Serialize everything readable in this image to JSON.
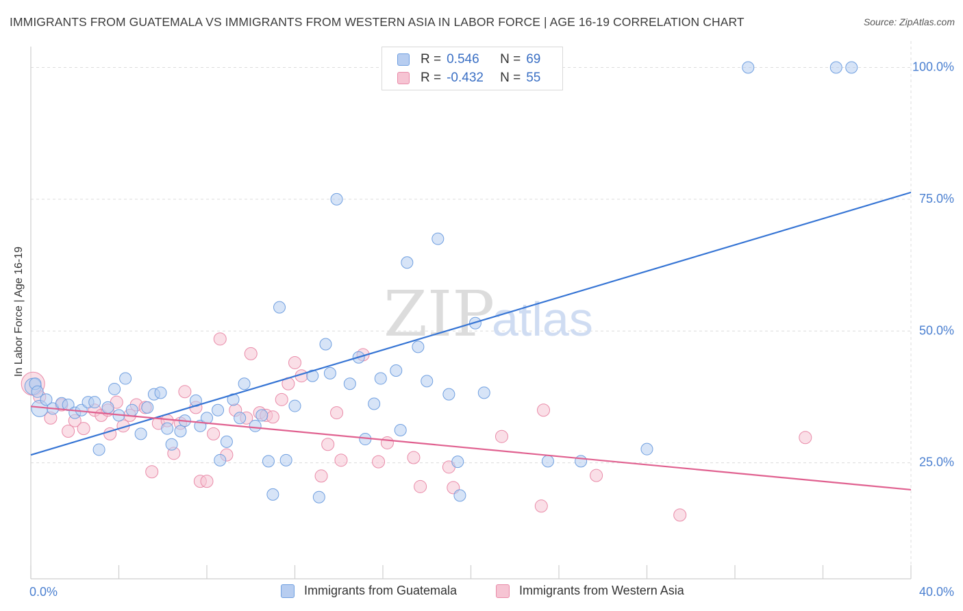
{
  "header": {
    "title": "IMMIGRANTS FROM GUATEMALA VS IMMIGRANTS FROM WESTERN ASIA IN LABOR FORCE | AGE 16-19 CORRELATION CHART",
    "source": "Source: ZipAtlas.com"
  },
  "watermark": {
    "zip": "ZIP",
    "atlas": "atlas"
  },
  "legend": {
    "rows": [
      {
        "r_label": "R =",
        "r_value": "0.546",
        "n_label": "N =",
        "n_value": "69"
      },
      {
        "r_label": "R =",
        "r_value": "-0.432",
        "n_label": "N =",
        "n_value": "55"
      }
    ]
  },
  "bottom_legend": {
    "guatemala": "Immigrants from Guatemala",
    "western_asia": "Immigrants from Western Asia"
  },
  "colors": {
    "blue_fill": "#b7cdf0",
    "blue_stroke": "#6f9fe0",
    "blue_line": "#3574d4",
    "pink_fill": "#f6c4d3",
    "pink_stroke": "#e98aa8",
    "pink_line": "#e0608f",
    "tick_label": "#4a7fd0",
    "grid": "#dcdcdc"
  },
  "chart_data": {
    "type": "scatter",
    "title": "IMMIGRANTS FROM GUATEMALA VS IMMIGRANTS FROM WESTERN ASIA IN LABOR FORCE | AGE 16-19 CORRELATION CHART",
    "xlabel": "",
    "ylabel": "In Labor Force | Age 16-19",
    "xlim": [
      0,
      40
    ],
    "ylim": [
      3,
      105
    ],
    "x_tick_labels": [
      "0.0%",
      "40.0%"
    ],
    "y_ticks": [
      25,
      50,
      75,
      100
    ],
    "y_tick_labels": [
      "25.0%",
      "50.0%",
      "75.0%",
      "100.0%"
    ],
    "grid": true,
    "legend_position": "top-center",
    "series": [
      {
        "name": "Immigrants from Guatemala",
        "r": 0.546,
        "n": 69,
        "trend": {
          "x": [
            0,
            40
          ],
          "y": [
            26.5,
            76.3
          ]
        },
        "points": [
          [
            0.1,
            39.5
          ],
          [
            0.4,
            35.3
          ],
          [
            0.7,
            37.0
          ],
          [
            1.0,
            35.3
          ],
          [
            1.4,
            36.3
          ],
          [
            1.7,
            36.0
          ],
          [
            2.0,
            34.5
          ],
          [
            2.3,
            35.0
          ],
          [
            2.6,
            36.5
          ],
          [
            2.9,
            36.5
          ],
          [
            3.1,
            27.5
          ],
          [
            3.5,
            35.5
          ],
          [
            3.8,
            39.0
          ],
          [
            4.0,
            34.0
          ],
          [
            4.3,
            41.0
          ],
          [
            4.6,
            35.0
          ],
          [
            5.0,
            30.5
          ],
          [
            5.3,
            35.5
          ],
          [
            5.6,
            38.0
          ],
          [
            5.9,
            38.3
          ],
          [
            6.2,
            31.5
          ],
          [
            6.4,
            28.5
          ],
          [
            6.8,
            31.0
          ],
          [
            7.0,
            33.0
          ],
          [
            7.5,
            36.8
          ],
          [
            7.7,
            32.0
          ],
          [
            8.0,
            33.5
          ],
          [
            8.5,
            35.0
          ],
          [
            8.6,
            25.5
          ],
          [
            8.9,
            29.0
          ],
          [
            9.2,
            37.0
          ],
          [
            9.5,
            33.5
          ],
          [
            9.7,
            40.0
          ],
          [
            10.2,
            32.0
          ],
          [
            10.5,
            34.0
          ],
          [
            10.8,
            25.3
          ],
          [
            11.0,
            19.0
          ],
          [
            11.3,
            54.5
          ],
          [
            11.6,
            25.5
          ],
          [
            12.0,
            35.8
          ],
          [
            12.8,
            41.5
          ],
          [
            13.1,
            18.5
          ],
          [
            13.4,
            47.5
          ],
          [
            13.6,
            42.0
          ],
          [
            13.9,
            75.0
          ],
          [
            14.5,
            40.0
          ],
          [
            14.9,
            45.0
          ],
          [
            15.2,
            29.5
          ],
          [
            15.6,
            36.2
          ],
          [
            15.9,
            41.0
          ],
          [
            16.6,
            42.5
          ],
          [
            16.8,
            31.2
          ],
          [
            17.1,
            63.0
          ],
          [
            17.6,
            47.0
          ],
          [
            18.0,
            40.5
          ],
          [
            18.5,
            67.5
          ],
          [
            19.0,
            38.0
          ],
          [
            19.4,
            25.2
          ],
          [
            19.5,
            18.8
          ],
          [
            20.2,
            51.5
          ],
          [
            20.6,
            38.3
          ],
          [
            23.5,
            25.3
          ],
          [
            25.0,
            25.3
          ],
          [
            28.0,
            27.6
          ],
          [
            32.6,
            100.0
          ],
          [
            36.6,
            100.0
          ],
          [
            37.3,
            100.0
          ],
          [
            0.2,
            40.0
          ],
          [
            0.3,
            38.5
          ]
        ]
      },
      {
        "name": "Immigrants from Western Asia",
        "r": -0.432,
        "n": 55,
        "trend": {
          "x": [
            0,
            40
          ],
          "y": [
            35.7,
            19.9
          ]
        },
        "points": [
          [
            0.1,
            40.0
          ],
          [
            0.4,
            37.5
          ],
          [
            0.9,
            33.5
          ],
          [
            1.4,
            36.0
          ],
          [
            1.7,
            31.0
          ],
          [
            2.0,
            33.0
          ],
          [
            2.4,
            31.5
          ],
          [
            2.9,
            35.0
          ],
          [
            3.2,
            34.0
          ],
          [
            3.5,
            35.0
          ],
          [
            3.6,
            30.5
          ],
          [
            3.9,
            36.5
          ],
          [
            4.2,
            32.0
          ],
          [
            4.5,
            34.0
          ],
          [
            4.8,
            36.0
          ],
          [
            5.2,
            35.5
          ],
          [
            5.5,
            23.3
          ],
          [
            5.8,
            32.5
          ],
          [
            6.2,
            33.0
          ],
          [
            6.5,
            26.8
          ],
          [
            6.8,
            32.5
          ],
          [
            7.0,
            38.5
          ],
          [
            7.5,
            35.5
          ],
          [
            7.7,
            21.5
          ],
          [
            8.0,
            21.5
          ],
          [
            8.3,
            30.5
          ],
          [
            8.6,
            48.5
          ],
          [
            8.9,
            26.5
          ],
          [
            9.3,
            35.0
          ],
          [
            9.8,
            33.5
          ],
          [
            10.0,
            45.7
          ],
          [
            10.4,
            34.5
          ],
          [
            10.7,
            34.0
          ],
          [
            11.0,
            33.7
          ],
          [
            11.4,
            37.0
          ],
          [
            11.7,
            40.0
          ],
          [
            12.0,
            44.0
          ],
          [
            12.3,
            41.5
          ],
          [
            13.2,
            22.5
          ],
          [
            13.5,
            28.5
          ],
          [
            13.9,
            34.5
          ],
          [
            14.1,
            25.5
          ],
          [
            15.1,
            45.5
          ],
          [
            15.8,
            25.2
          ],
          [
            16.2,
            28.8
          ],
          [
            17.4,
            26.0
          ],
          [
            17.7,
            20.5
          ],
          [
            19.0,
            24.2
          ],
          [
            19.2,
            20.3
          ],
          [
            21.4,
            30.0
          ],
          [
            23.2,
            16.8
          ],
          [
            23.3,
            35.0
          ],
          [
            25.7,
            22.6
          ],
          [
            29.5,
            15.1
          ],
          [
            35.2,
            29.8
          ]
        ]
      }
    ]
  }
}
